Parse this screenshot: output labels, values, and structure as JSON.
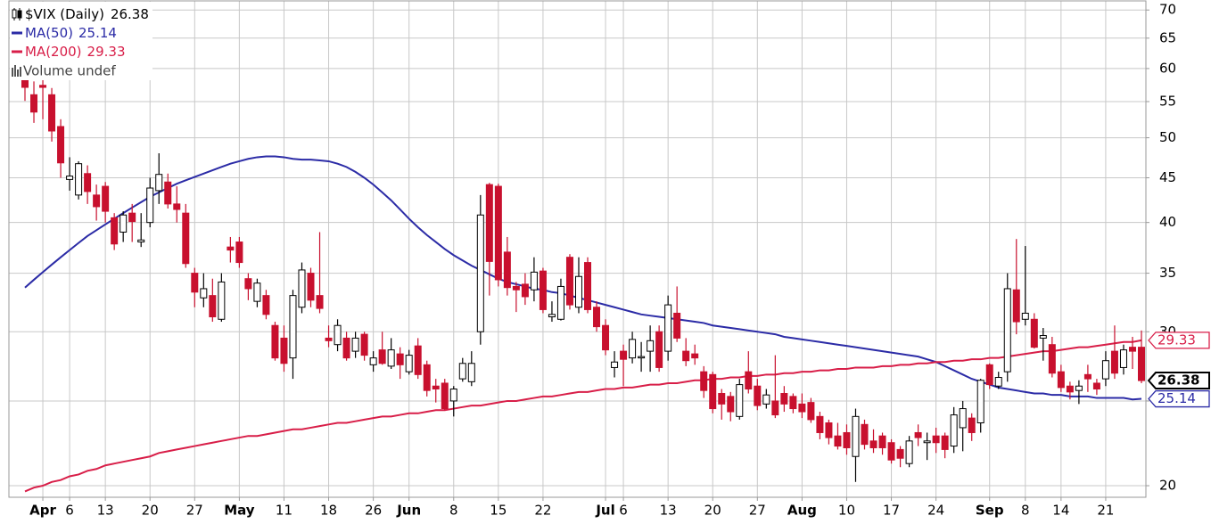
{
  "chart_data": {
    "type": "candlestick",
    "title": "$VIX (Daily)",
    "title_value_label": "26.38",
    "volume_label": "Volume undef",
    "log_scale": true,
    "grid": true,
    "up_color": "#ffffff",
    "up_stroke": "#000000",
    "down_color": "#c8102e",
    "ylim": [
      19.4,
      71.7
    ],
    "yticks": [
      20,
      25,
      30,
      35,
      40,
      45,
      50,
      55,
      60,
      65,
      70
    ],
    "categories": [
      null,
      null,
      "Apr",
      null,
      null,
      "6",
      null,
      null,
      null,
      "13",
      null,
      null,
      null,
      null,
      "20",
      null,
      null,
      null,
      null,
      "27",
      null,
      null,
      null,
      null,
      "May",
      null,
      null,
      null,
      null,
      "11",
      null,
      null,
      null,
      null,
      "18",
      null,
      null,
      null,
      null,
      "26",
      null,
      null,
      null,
      "Jun",
      null,
      null,
      null,
      null,
      "8",
      null,
      null,
      null,
      null,
      "15",
      null,
      null,
      null,
      null,
      "22",
      null,
      null,
      null,
      null,
      null,
      null,
      "Jul",
      null,
      "6",
      null,
      null,
      null,
      null,
      "13",
      null,
      null,
      null,
      null,
      "20",
      null,
      null,
      null,
      null,
      "27",
      null,
      null,
      null,
      null,
      "Aug",
      null,
      null,
      null,
      null,
      "10",
      null,
      null,
      null,
      null,
      "17",
      null,
      null,
      null,
      null,
      "24",
      null,
      null,
      null,
      null,
      null,
      "Sep",
      null,
      null,
      null,
      "8",
      null,
      null,
      null,
      "14",
      null,
      null,
      null,
      null,
      "21",
      null,
      null,
      null,
      null
    ],
    "open": [
      63.0,
      56.0,
      57.4,
      56.0,
      51.5,
      44.8,
      43.0,
      45.5,
      43.0,
      44.0,
      40.5,
      39.0,
      41.0,
      38.0,
      40.0,
      43.5,
      44.5,
      42.0,
      41.0,
      35.0,
      32.8,
      33.0,
      31.0,
      37.5,
      38.0,
      34.5,
      32.5,
      33.0,
      30.5,
      29.5,
      28.0,
      32.0,
      35.0,
      33.0,
      29.5,
      29.0,
      29.5,
      28.5,
      29.8,
      27.5,
      28.6,
      27.4,
      28.3,
      27.0,
      28.9,
      27.5,
      26.0,
      26.2,
      25.0,
      26.5,
      26.3,
      30.0,
      44.2,
      44.0,
      37.0,
      33.8,
      34.0,
      33.5,
      35.2,
      31.2,
      31.0,
      36.5,
      32.0,
      36.0,
      32.0,
      30.5,
      27.3,
      28.5,
      28.0,
      28.0,
      28.5,
      30.0,
      28.5,
      31.5,
      28.5,
      28.3,
      27.0,
      26.8,
      25.5,
      25.3,
      24.0,
      27.0,
      26.0,
      24.8,
      25.0,
      25.5,
      25.3,
      24.8,
      24.9,
      24.0,
      23.6,
      22.8,
      23.0,
      21.6,
      23.5,
      22.5,
      22.8,
      22.4,
      22.0,
      21.2,
      23.0,
      22.4,
      22.8,
      22.8,
      22.2,
      23.3,
      23.9,
      23.6,
      27.5,
      26.0,
      27.0,
      33.5,
      31.0,
      31.0,
      29.5,
      29.0,
      27.0,
      26.0,
      25.7,
      26.8,
      26.2,
      26.5,
      28.5,
      27.3,
      28.8,
      28.8
    ],
    "high": [
      63.7,
      58.0,
      58.3,
      57.0,
      52.5,
      47.5,
      47.0,
      46.5,
      44.2,
      44.5,
      41.0,
      41.2,
      42.0,
      41.0,
      45.0,
      48.0,
      45.5,
      44.0,
      42.0,
      35.5,
      35.0,
      34.5,
      35.0,
      38.5,
      38.5,
      35.0,
      34.5,
      33.5,
      30.8,
      30.5,
      33.5,
      36.0,
      35.5,
      39.0,
      30.5,
      31.0,
      30.0,
      30.0,
      30.0,
      28.5,
      30.0,
      29.5,
      28.8,
      28.6,
      29.5,
      27.8,
      26.5,
      26.5,
      26.0,
      28.0,
      28.5,
      43.0,
      44.4,
      44.3,
      38.5,
      34.2,
      35.0,
      36.5,
      35.5,
      32.5,
      34.5,
      36.8,
      36.5,
      36.5,
      32.5,
      31.0,
      28.5,
      29.0,
      30.0,
      29.2,
      30.5,
      30.5,
      33.0,
      33.8,
      29.5,
      29.0,
      27.4,
      27.0,
      25.8,
      25.6,
      26.5,
      28.5,
      26.5,
      25.8,
      28.2,
      26.0,
      25.5,
      25.5,
      25.2,
      24.3,
      23.8,
      23.6,
      23.5,
      24.5,
      23.8,
      23.2,
      23.0,
      22.6,
      22.2,
      22.8,
      23.5,
      23.0,
      23.3,
      23.0,
      24.6,
      25.0,
      24.2,
      26.5,
      27.6,
      27.0,
      35.0,
      38.3,
      37.6,
      31.5,
      30.3,
      29.6,
      27.5,
      26.3,
      26.4,
      27.5,
      26.5,
      28.5,
      30.5,
      29.0,
      29.6,
      30.1
    ],
    "low": [
      55.1,
      52.0,
      52.5,
      49.5,
      45.0,
      43.5,
      42.5,
      42.0,
      40.2,
      40.0,
      37.2,
      38.0,
      38.0,
      37.5,
      39.5,
      42.0,
      41.5,
      40.0,
      35.5,
      32.0,
      32.0,
      30.8,
      30.8,
      36.0,
      35.5,
      32.6,
      32.0,
      31.0,
      27.8,
      27.0,
      26.5,
      31.5,
      32.0,
      31.5,
      28.8,
      28.5,
      27.8,
      28.0,
      27.8,
      27.0,
      27.5,
      27.2,
      26.5,
      26.8,
      26.5,
      25.3,
      24.9,
      24.4,
      24.0,
      26.3,
      26.0,
      29.0,
      33.0,
      33.8,
      33.0,
      31.6,
      32.2,
      32.5,
      31.5,
      30.8,
      30.9,
      31.8,
      31.5,
      31.5,
      30.0,
      28.2,
      26.6,
      26.0,
      27.6,
      27.0,
      27.0,
      27.0,
      27.8,
      29.2,
      27.4,
      27.5,
      25.2,
      24.2,
      23.8,
      23.7,
      23.8,
      25.5,
      24.4,
      24.5,
      23.9,
      24.3,
      24.2,
      23.9,
      23.6,
      22.6,
      22.3,
      22.0,
      21.7,
      20.2,
      22.0,
      21.8,
      21.7,
      21.2,
      21.0,
      21.0,
      22.2,
      21.4,
      21.8,
      21.5,
      21.8,
      21.9,
      22.5,
      23.0,
      25.8,
      25.8,
      26.3,
      29.8,
      30.5,
      28.7,
      27.8,
      26.6,
      25.6,
      25.1,
      24.8,
      25.6,
      25.4,
      26.0,
      26.5,
      26.8,
      27.2,
      26.2
    ],
    "close": [
      57.1,
      53.5,
      57.1,
      50.9,
      46.8,
      45.2,
      46.7,
      43.4,
      41.7,
      41.2,
      37.8,
      40.8,
      40.1,
      38.2,
      43.8,
      45.4,
      42.0,
      41.4,
      35.9,
      33.3,
      33.6,
      31.2,
      34.2,
      37.2,
      36.0,
      33.6,
      34.1,
      31.4,
      28.0,
      27.6,
      33.0,
      35.3,
      32.6,
      31.9,
      29.3,
      30.5,
      28.0,
      29.5,
      28.2,
      28.0,
      27.6,
      28.6,
      27.5,
      28.2,
      26.8,
      25.7,
      25.8,
      24.5,
      25.8,
      27.6,
      27.6,
      40.8,
      36.1,
      34.4,
      33.7,
      33.5,
      32.9,
      35.1,
      31.8,
      31.4,
      33.8,
      32.2,
      34.7,
      31.8,
      30.4,
      28.6,
      27.7,
      27.9,
      29.4,
      28.1,
      29.3,
      27.3,
      32.2,
      29.5,
      27.8,
      28.0,
      25.7,
      24.5,
      24.8,
      24.3,
      26.1,
      25.8,
      24.7,
      25.4,
      24.1,
      24.8,
      24.5,
      24.3,
      23.8,
      23.0,
      22.7,
      22.2,
      22.1,
      24.0,
      22.3,
      22.1,
      22.1,
      21.4,
      21.5,
      22.5,
      22.7,
      22.5,
      22.4,
      22.0,
      24.1,
      24.5,
      23.0,
      26.4,
      26.1,
      26.6,
      33.6,
      30.8,
      31.5,
      28.8,
      29.7,
      26.9,
      25.9,
      25.6,
      26.0,
      26.5,
      25.8,
      27.8,
      26.9,
      28.6,
      28.5,
      26.38
    ],
    "overlays": [
      {
        "name": "MA(50)",
        "value_label": "25.14",
        "color": "#2b2ba6",
        "values": [
          33.7,
          34.4,
          35.1,
          35.8,
          36.5,
          37.2,
          37.9,
          38.6,
          39.2,
          39.8,
          40.4,
          41.0,
          41.6,
          42.2,
          42.8,
          43.3,
          43.8,
          44.3,
          44.7,
          45.1,
          45.5,
          45.9,
          46.3,
          46.7,
          47.0,
          47.3,
          47.5,
          47.6,
          47.6,
          47.5,
          47.3,
          47.2,
          47.2,
          47.1,
          47.0,
          46.7,
          46.3,
          45.7,
          45.0,
          44.2,
          43.3,
          42.4,
          41.4,
          40.4,
          39.5,
          38.7,
          38.0,
          37.3,
          36.7,
          36.2,
          35.7,
          35.3,
          34.9,
          34.5,
          34.2,
          34.0,
          33.8,
          33.6,
          33.5,
          33.3,
          33.2,
          33.0,
          32.8,
          32.6,
          32.4,
          32.2,
          32.0,
          31.8,
          31.6,
          31.4,
          31.3,
          31.2,
          31.1,
          31.0,
          30.9,
          30.8,
          30.7,
          30.5,
          30.4,
          30.3,
          30.2,
          30.1,
          30.0,
          29.9,
          29.8,
          29.6,
          29.5,
          29.4,
          29.3,
          29.2,
          29.1,
          29.0,
          28.9,
          28.8,
          28.7,
          28.6,
          28.5,
          28.4,
          28.3,
          28.2,
          28.1,
          27.9,
          27.7,
          27.4,
          27.1,
          26.8,
          26.5,
          26.3,
          26.1,
          25.9,
          25.8,
          25.7,
          25.6,
          25.5,
          25.5,
          25.4,
          25.4,
          25.3,
          25.3,
          25.3,
          25.2,
          25.2,
          25.2,
          25.2,
          25.1,
          25.14
        ]
      },
      {
        "name": "MA(200)",
        "value_label": "29.33",
        "color": "#d81e48",
        "values": [
          19.7,
          19.9,
          20.0,
          20.2,
          20.3,
          20.5,
          20.6,
          20.8,
          20.9,
          21.1,
          21.2,
          21.3,
          21.4,
          21.5,
          21.6,
          21.8,
          21.9,
          22.0,
          22.1,
          22.2,
          22.3,
          22.4,
          22.5,
          22.6,
          22.7,
          22.8,
          22.8,
          22.9,
          23.0,
          23.1,
          23.2,
          23.2,
          23.3,
          23.4,
          23.5,
          23.6,
          23.6,
          23.7,
          23.8,
          23.9,
          24.0,
          24.0,
          24.1,
          24.2,
          24.2,
          24.3,
          24.4,
          24.4,
          24.5,
          24.6,
          24.7,
          24.7,
          24.8,
          24.9,
          25.0,
          25.0,
          25.1,
          25.2,
          25.3,
          25.3,
          25.4,
          25.5,
          25.6,
          25.6,
          25.7,
          25.8,
          25.8,
          25.9,
          25.9,
          26.0,
          26.1,
          26.1,
          26.2,
          26.2,
          26.3,
          26.4,
          26.4,
          26.5,
          26.5,
          26.6,
          26.6,
          26.7,
          26.7,
          26.8,
          26.8,
          26.9,
          26.9,
          27.0,
          27.0,
          27.1,
          27.1,
          27.2,
          27.2,
          27.3,
          27.3,
          27.3,
          27.4,
          27.4,
          27.5,
          27.5,
          27.6,
          27.6,
          27.7,
          27.7,
          27.8,
          27.8,
          27.9,
          27.9,
          28.0,
          28.0,
          28.1,
          28.2,
          28.3,
          28.4,
          28.5,
          28.5,
          28.6,
          28.7,
          28.8,
          28.8,
          28.9,
          29.0,
          29.1,
          29.2,
          29.2,
          29.33
        ]
      }
    ]
  }
}
